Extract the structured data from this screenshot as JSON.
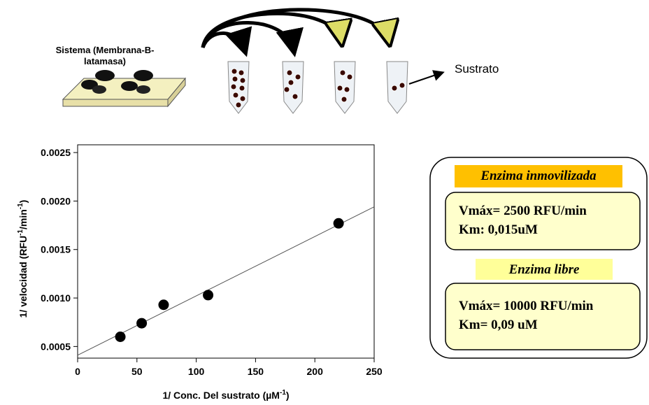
{
  "diagram": {
    "system_label": [
      "Sistema (Membrana-B-",
      "latamasa)"
    ],
    "substrate_label": "Sustrato"
  },
  "boxes": [
    {
      "title": "Enzima inmovilizada",
      "lines": [
        "Vmáx= 2500  RFU/min",
        "Km: 0,015uM"
      ]
    },
    {
      "title": "Enzima libre",
      "lines": [
        "Vmáx= 10000  RFU/min",
        "Km= 0,09 uM"
      ]
    }
  ],
  "chart_data": {
    "type": "scatter",
    "xlabel": [
      "1/ Conc. Del sustrato (µM",
      "-1",
      ")"
    ],
    "ylabel": [
      "1/ velocidad (RFU",
      "-1",
      "/min",
      "-1",
      ")"
    ],
    "points": {
      "x": [
        36,
        54,
        72.5,
        110,
        220
      ],
      "y": [
        0.0006,
        0.00074,
        0.00093,
        0.00103,
        0.00177
      ],
      "color": "#000000"
    },
    "fit": {
      "x": [
        0,
        250
      ],
      "y": [
        0.00041,
        0.00194
      ],
      "color": "#555555"
    },
    "xlim": [
      0,
      250
    ],
    "xticks": [
      0,
      50,
      100,
      150,
      200,
      250
    ],
    "ylim": [
      0.00038,
      0.00258
    ],
    "yticks": [
      0.0005,
      {
        "value": 0.001,
        "label": "0.0010"
      },
      0.0015,
      {
        "value": 0.002,
        "label": "0.0020"
      },
      0.0025
    ]
  }
}
